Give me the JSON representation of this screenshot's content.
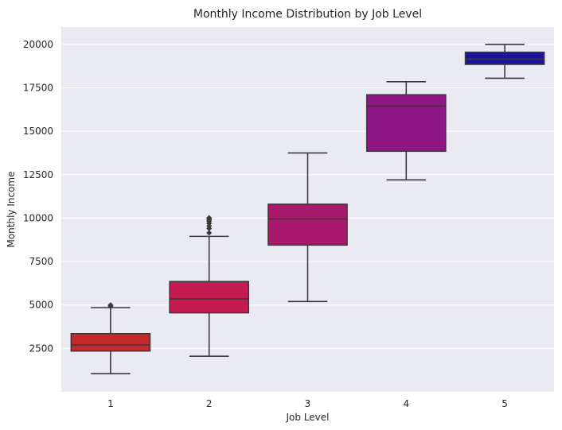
{
  "chart_data": {
    "type": "box",
    "title": "Monthly Income Distribution by Job Level",
    "xlabel": "Job Level",
    "ylabel": "Monthly Income",
    "ylim": [
      0,
      21000
    ],
    "yticks": [
      2500,
      5000,
      7500,
      10000,
      12500,
      15000,
      17500,
      20000
    ],
    "grid": true,
    "categories": [
      "1",
      "2",
      "3",
      "4",
      "5"
    ],
    "boxes": [
      {
        "category": "1",
        "whisker_low": 1050,
        "q1": 2350,
        "median": 2700,
        "q3": 3350,
        "whisker_high": 4850,
        "outliers": [
          4920,
          4960,
          5000
        ],
        "color": "#c42a2a"
      },
      {
        "category": "2",
        "whisker_low": 2050,
        "q1": 4550,
        "median": 5350,
        "q3": 6350,
        "whisker_high": 8950,
        "outliers": [
          9150,
          9400,
          9550,
          9700,
          9820,
          9900,
          9980,
          10020
        ],
        "color": "#c51a52"
      },
      {
        "category": "3",
        "whisker_low": 5200,
        "q1": 8450,
        "median": 9950,
        "q3": 10800,
        "whisker_high": 13750,
        "outliers": [],
        "color": "#a8196e"
      },
      {
        "category": "4",
        "whisker_low": 12200,
        "q1": 13850,
        "median": 16450,
        "q3": 17100,
        "whisker_high": 17850,
        "outliers": [],
        "color": "#8e1685"
      },
      {
        "category": "5",
        "whisker_low": 18050,
        "q1": 18850,
        "median": 19150,
        "q3": 19550,
        "whisker_high": 20000,
        "outliers": [],
        "color": "#1a12a8"
      }
    ],
    "background_color": "#eaeaf2",
    "grid_color": "#ffffff",
    "line_color": "#3a3a3a"
  }
}
